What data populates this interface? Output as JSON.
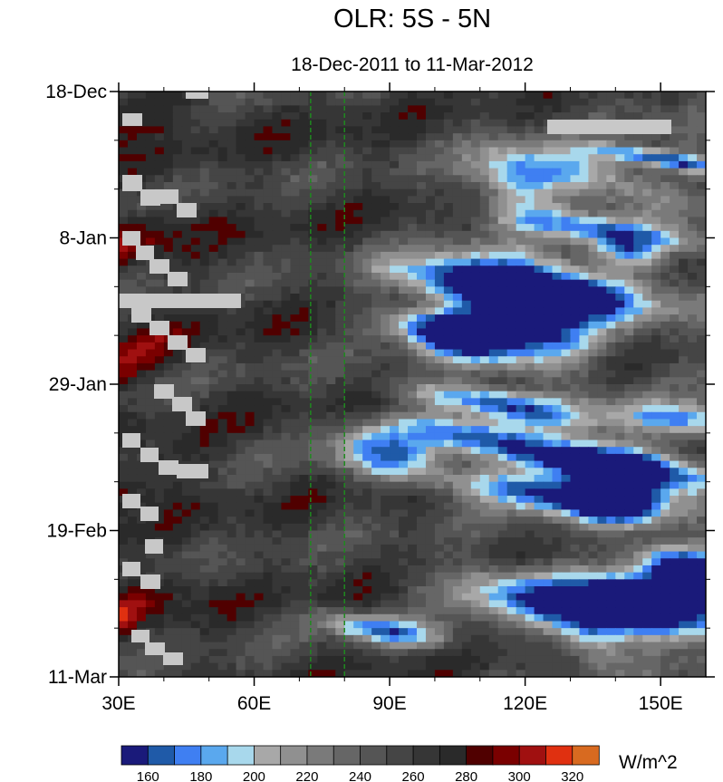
{
  "chart_data": {
    "type": "heatmap",
    "title": "OLR: 5S - 5N",
    "subtitle": "18-Dec-2011 to 11-Mar-2012",
    "xlabel": "",
    "ylabel": "",
    "x_ticks": [
      {
        "value": 30,
        "label": "30E"
      },
      {
        "value": 60,
        "label": "60E"
      },
      {
        "value": 90,
        "label": "90E"
      },
      {
        "value": 120,
        "label": "120E"
      },
      {
        "value": 150,
        "label": "150E"
      }
    ],
    "xlim": [
      30,
      160
    ],
    "y_ticks": [
      {
        "value": "2011-12-18",
        "label": "18-Dec"
      },
      {
        "value": "2012-01-08",
        "label": "8-Jan"
      },
      {
        "value": "2012-01-29",
        "label": "29-Jan"
      },
      {
        "value": "2012-02-19",
        "label": "19-Feb"
      },
      {
        "value": "2012-03-11",
        "label": "11-Mar"
      }
    ],
    "ylim": [
      "2011-12-18",
      "2012-03-11"
    ],
    "reference_lines": [
      72.5,
      80
    ],
    "colorbar": {
      "units": "W/m^2",
      "levels": [
        160,
        170,
        180,
        190,
        200,
        210,
        220,
        230,
        240,
        250,
        260,
        270,
        280,
        290,
        300,
        310,
        320
      ],
      "labels": [
        "160",
        "180",
        "200",
        "220",
        "240",
        "260",
        "280",
        "300",
        "320"
      ],
      "colors": [
        "#1a1a7a",
        "#1f5aa8",
        "#3f7ff2",
        "#5aa8ee",
        "#a8d8ec",
        "#a8a8a8",
        "#909090",
        "#7a7a7a",
        "#666666",
        "#555555",
        "#454545",
        "#363636",
        "#2a2a2a",
        "#500000",
        "#7a0000",
        "#a01010",
        "#e03010",
        "#d86a20"
      ]
    },
    "missing_color": "#c8c8c8"
  }
}
